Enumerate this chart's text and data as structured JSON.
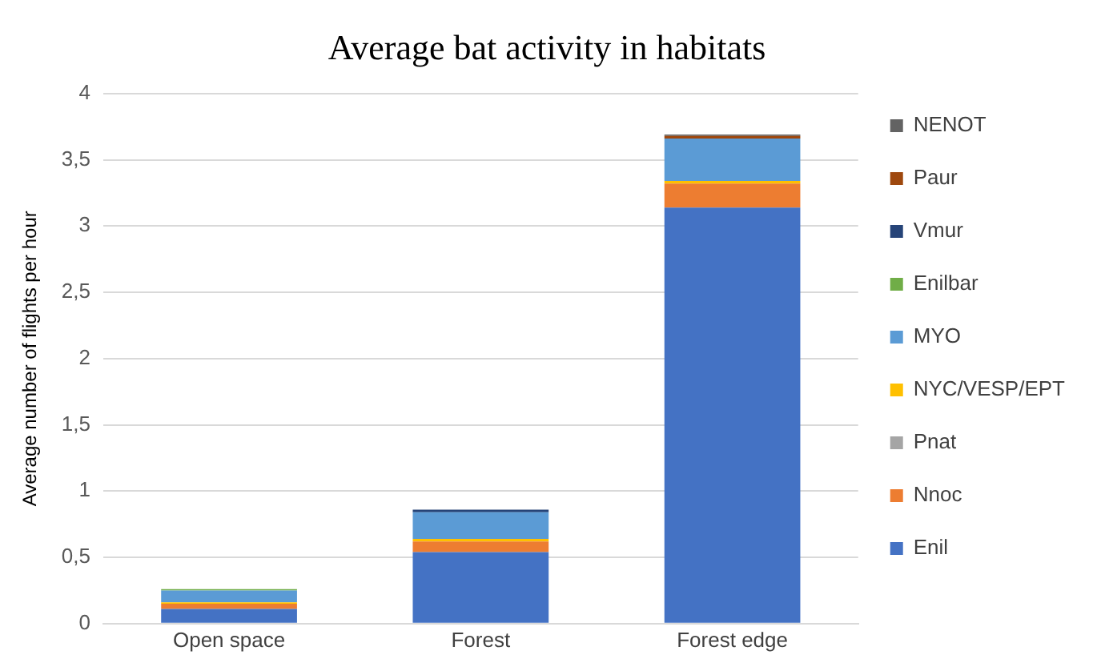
{
  "chart_data": {
    "type": "bar",
    "title": "Average bat activity in habitats",
    "ylabel": "Average number of flights per hour",
    "categories": [
      "Open space",
      "Forest",
      "Forest edge"
    ],
    "stacked": true,
    "legend": "right",
    "grid": "y",
    "ylim": [
      0,
      4
    ],
    "yticks": [
      0,
      {
        "value": 0.5,
        "label": "0,5"
      },
      1,
      {
        "value": 1.5,
        "label": "1,5"
      },
      2,
      {
        "value": 2.5,
        "label": "2,5"
      },
      3,
      {
        "value": 3.5,
        "label": "3,5"
      },
      4
    ],
    "series": [
      {
        "name": "Enil",
        "color": "#4472c4",
        "values": [
          0.11,
          0.54,
          3.14
        ]
      },
      {
        "name": "Nnoc",
        "color": "#ed7d31",
        "values": [
          0.04,
          0.08,
          0.18
        ]
      },
      {
        "name": "Pnat",
        "color": "#a5a5a5",
        "values": [
          0,
          0,
          0
        ]
      },
      {
        "name": "NYC/VESP/EPT",
        "color": "#ffc000",
        "values": [
          0.01,
          0.02,
          0.02
        ]
      },
      {
        "name": "MYO",
        "color": "#5b9bd5",
        "values": [
          0.09,
          0.2,
          0.32
        ]
      },
      {
        "name": "Enilbar",
        "color": "#70ad47",
        "values": [
          0.01,
          0,
          0
        ]
      },
      {
        "name": "Vmur",
        "color": "#264478",
        "values": [
          0,
          0.02,
          0
        ]
      },
      {
        "name": "Paur",
        "color": "#9e480e",
        "values": [
          0,
          0,
          0.02
        ]
      },
      {
        "name": "NENOT",
        "color": "#636363",
        "values": [
          0,
          0,
          0.01
        ]
      }
    ]
  }
}
